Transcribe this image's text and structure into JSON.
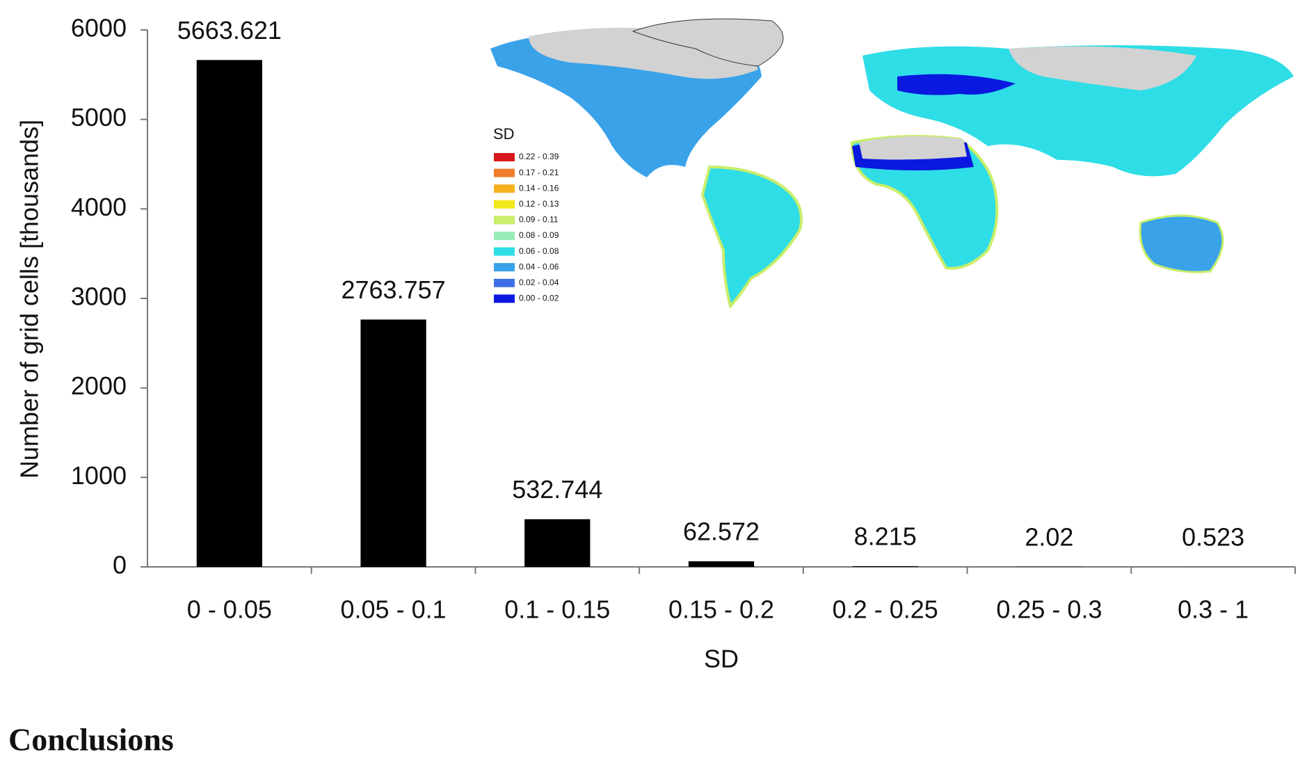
{
  "chart_data": {
    "type": "bar",
    "categories": [
      "0 - 0.05",
      "0.05 - 0.1",
      "0.1 - 0.15",
      "0.15 - 0.2",
      "0.2 - 0.25",
      "0.25 - 0.3",
      "0.3 - 1"
    ],
    "values": [
      5663.621,
      2763.757,
      532.744,
      62.572,
      8.215,
      2.02,
      0.523
    ],
    "color": "#000000",
    "xlabel": "SD",
    "ylabel": "Number of grid cells [thousands]",
    "ylim": [
      0,
      6000
    ],
    "yticks": [
      0,
      1000,
      2000,
      3000,
      4000,
      5000,
      6000
    ],
    "grid": false
  },
  "inset_map": {
    "legend_title": "SD",
    "legend": [
      {
        "label": "0.22 - 0.39",
        "color": "#d7191c"
      },
      {
        "label": "0.17 - 0.21",
        "color": "#f07c2a"
      },
      {
        "label": "0.14 - 0.16",
        "color": "#f5b020"
      },
      {
        "label": "0.12 - 0.13",
        "color": "#f4e81a"
      },
      {
        "label": "0.09 - 0.11",
        "color": "#c8ee6a"
      },
      {
        "label": "0.08 - 0.09",
        "color": "#98ecb8"
      },
      {
        "label": "0.06 - 0.08",
        "color": "#2fdde6"
      },
      {
        "label": "0.04 - 0.06",
        "color": "#3aa2e8"
      },
      {
        "label": "0.02 - 0.04",
        "color": "#3e6ee6"
      },
      {
        "label": "0.00 - 0.02",
        "color": "#0a18e0"
      }
    ]
  },
  "heading": "Conclusions"
}
